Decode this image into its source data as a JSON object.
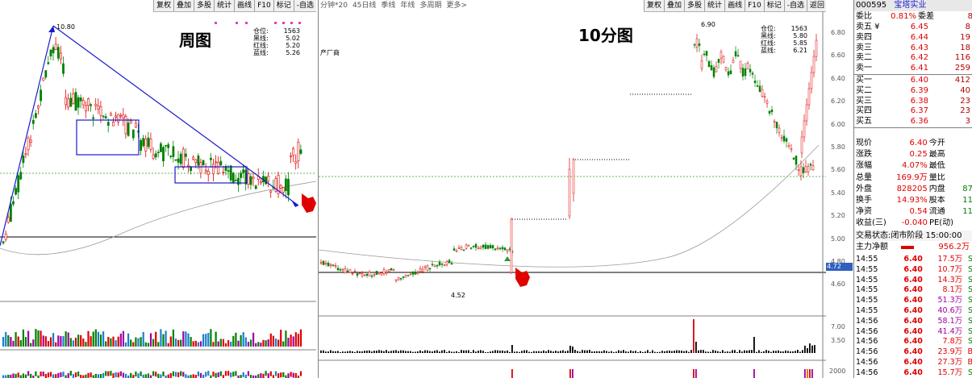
{
  "left": {
    "toolbar": [
      "复权",
      "叠加",
      "多股",
      "统计",
      "画线",
      "F10",
      "标记",
      "-自选"
    ],
    "title": "周图",
    "high_label": "10.80",
    "legend": [
      {
        "label": "仓位:",
        "value": "1563"
      },
      {
        "label": "黑线:",
        "value": "5.02"
      },
      {
        "label": "红线:",
        "value": "5.20"
      },
      {
        "label": "蓝线:",
        "value": "5.26"
      }
    ]
  },
  "mid": {
    "tabs": [
      "分钟*20",
      "45日线",
      "季线",
      "年线",
      "多周期",
      "更多>"
    ],
    "toolbar": [
      "复权",
      "叠加",
      "多股",
      "统计",
      "画线",
      "F10",
      "标记",
      "-自选",
      "返回"
    ],
    "title": "10分图",
    "side_text": "产厂商",
    "high_label": "6.90",
    "low_label": "4.52",
    "price_tag": "4.72",
    "legend": [
      {
        "label": "仓位:",
        "value": "1563"
      },
      {
        "label": "黑线:",
        "value": "5.80"
      },
      {
        "label": "红线:",
        "value": "5.85"
      },
      {
        "label": "蓝线:",
        "value": "6.21"
      }
    ],
    "y_axis": [
      "6.80",
      "6.60",
      "6.40",
      "6.20",
      "6.00",
      "5.80",
      "5.60",
      "5.40",
      "5.20",
      "5.00",
      "4.80",
      "4.60"
    ],
    "vol_axis": [
      "7.00",
      "3.50"
    ],
    "bottom_axis": "2000"
  },
  "right": {
    "code": "000595",
    "name": "宝塔实业",
    "weibi": {
      "label": "委比",
      "value": "0.81%",
      "label2": "委差",
      "value2": "8"
    },
    "asks": [
      {
        "label": "卖五 ¥",
        "price": "6.45",
        "vol": "8"
      },
      {
        "label": "卖四",
        "price": "6.44",
        "vol": "19"
      },
      {
        "label": "卖三",
        "price": "6.43",
        "vol": "18"
      },
      {
        "label": "卖二",
        "price": "6.42",
        "vol": "116"
      },
      {
        "label": "卖一",
        "price": "6.41",
        "vol": "259"
      }
    ],
    "bids": [
      {
        "label": "买一",
        "price": "6.40",
        "vol": "412"
      },
      {
        "label": "买二",
        "price": "6.39",
        "vol": "40"
      },
      {
        "label": "买三",
        "price": "6.38",
        "vol": "23"
      },
      {
        "label": "买四",
        "price": "6.37",
        "vol": "23"
      },
      {
        "label": "买五",
        "price": "6.36",
        "vol": "3"
      }
    ],
    "stats": [
      {
        "l1": "现价",
        "v1": "6.40",
        "l2": "今开",
        "v2": ""
      },
      {
        "l1": "涨跌",
        "v1": "0.25",
        "l2": "最高",
        "v2": ""
      },
      {
        "l1": "涨幅",
        "v1": "4.07%",
        "l2": "最低",
        "v2": ""
      },
      {
        "l1": "总量",
        "v1": "169.9万",
        "l2": "量比",
        "v2": ""
      },
      {
        "l1": "外盘",
        "v1": "828205",
        "l2": "内盘",
        "v2": "87"
      },
      {
        "l1": "换手",
        "v1": "14.93%",
        "l2": "股本",
        "v2": "11"
      },
      {
        "l1": "净资",
        "v1": "0.54",
        "l2": "流通",
        "v2": "11"
      },
      {
        "l1": "收益(三)",
        "v1": "-0.040",
        "l2": "PE(动)",
        "v2": ""
      }
    ],
    "trade_status": "交易状态:闭市阶段 15:00:00",
    "main_net": {
      "label": "主力净额",
      "value": "956.2万"
    },
    "ticks": [
      {
        "t": "14:55",
        "p": "6.40",
        "v": "17.5万",
        "s": "S"
      },
      {
        "t": "14:55",
        "p": "6.40",
        "v": "10.7万",
        "s": "S"
      },
      {
        "t": "14:55",
        "p": "6.40",
        "v": "14.3万",
        "s": "S"
      },
      {
        "t": "14:55",
        "p": "6.40",
        "v": "8.1万",
        "s": "S"
      },
      {
        "t": "14:55",
        "p": "6.40",
        "v": "51.3万",
        "s": "S"
      },
      {
        "t": "14:55",
        "p": "6.40",
        "v": "40.6万",
        "s": "S"
      },
      {
        "t": "14:56",
        "p": "6.40",
        "v": "58.1万",
        "s": "S"
      },
      {
        "t": "14:56",
        "p": "6.40",
        "v": "41.4万",
        "s": "S"
      },
      {
        "t": "14:56",
        "p": "6.40",
        "v": "7.8万",
        "s": "S"
      },
      {
        "t": "14:56",
        "p": "6.40",
        "v": "23.9万",
        "s": "B"
      },
      {
        "t": "14:56",
        "p": "6.40",
        "v": "27.3万",
        "s": "B"
      },
      {
        "t": "14:56",
        "p": "6.40",
        "v": "15.7万",
        "s": "S"
      }
    ]
  },
  "colors": {
    "up": "#e00000",
    "down": "#008000",
    "blue": "#1a1acc",
    "bg": "#ffffff"
  }
}
